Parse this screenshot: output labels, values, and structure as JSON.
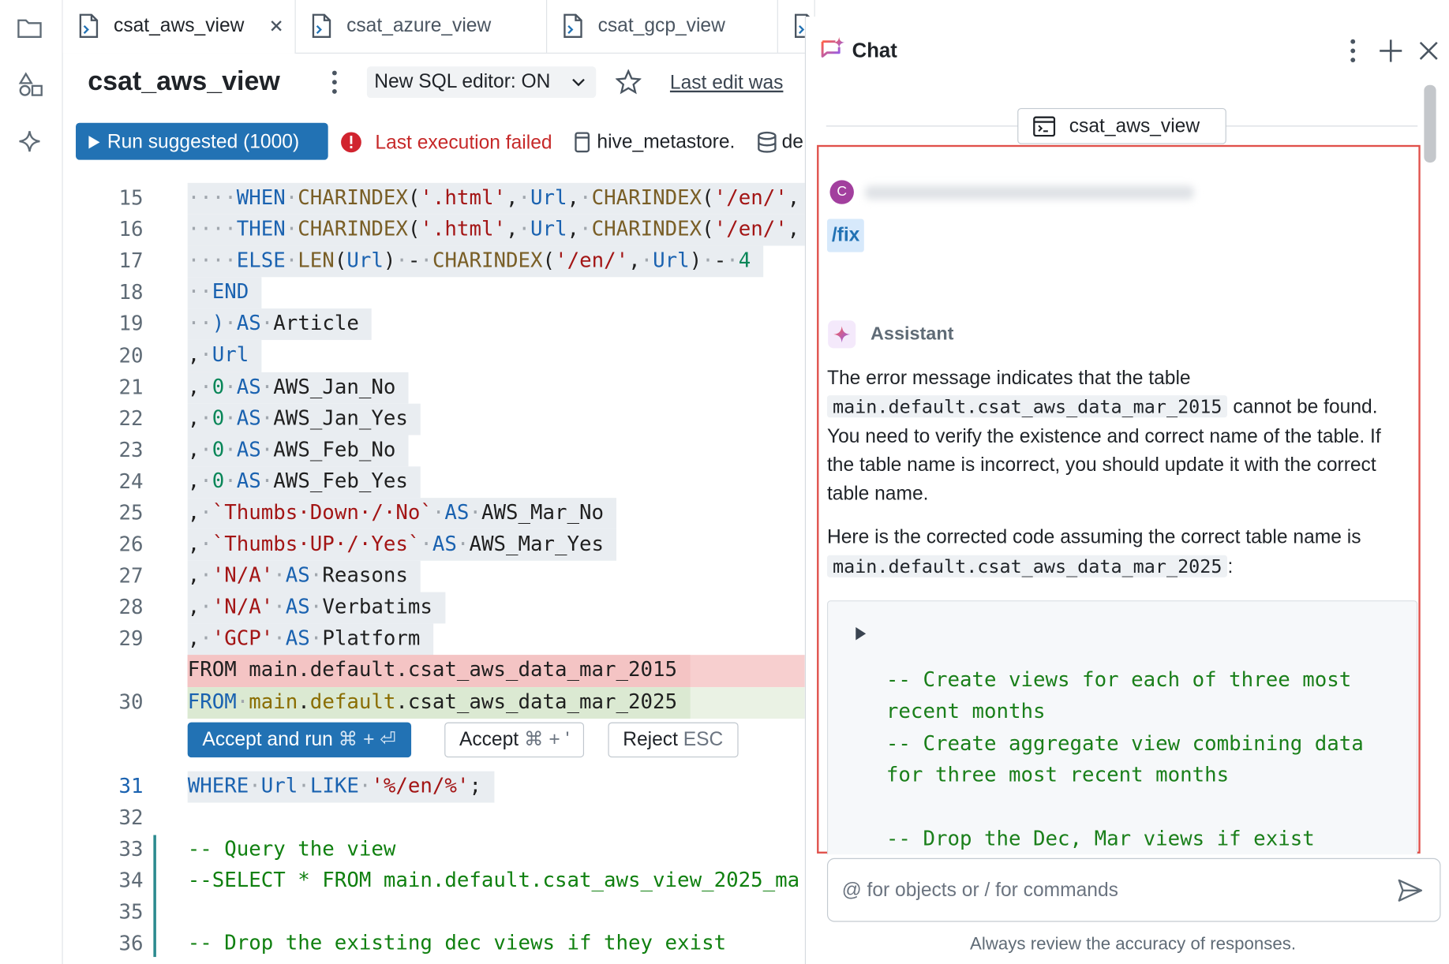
{
  "tabs": [
    {
      "label": "csat_aws_view"
    },
    {
      "label": "csat_azure_view"
    },
    {
      "label": "csat_gcp_view"
    }
  ],
  "toolbar": {
    "title": "csat_aws_view",
    "editor_toggle": "New SQL editor: ON",
    "last_edit": "Last edit was",
    "run_button": "Run suggested (1000)",
    "error": "Last execution failed",
    "catalog": "hive_metastore",
    "separator": ".",
    "schema": "de"
  },
  "editor": {
    "lines": [
      {
        "number": "15",
        "bg": "#e9edf1",
        "tokens": [
          [
            "····",
            "#a0a6ad"
          ],
          [
            "WHEN",
            "#1a62b0"
          ],
          [
            "·",
            "#a0a6ad"
          ],
          [
            "CHARINDEX",
            "#795e26"
          ],
          [
            "(",
            "#1f1f1f"
          ],
          [
            "'.html'",
            "#a31515"
          ],
          [
            ",",
            "#1f1f1f"
          ],
          [
            "·",
            "#a0a6ad"
          ],
          [
            "Url",
            "#1a62b0"
          ],
          [
            ",",
            "#1f1f1f"
          ],
          [
            "·",
            "#a0a6ad"
          ],
          [
            "CHARINDEX",
            "#795e26"
          ],
          [
            "(",
            "#1f1f1f"
          ],
          [
            "'/en/'",
            "#a31515"
          ],
          [
            ",",
            "#1f1f1f"
          ]
        ]
      },
      {
        "number": "16",
        "bg": "#e9edf1",
        "tokens": [
          [
            "····",
            "#a0a6ad"
          ],
          [
            "THEN",
            "#1a62b0"
          ],
          [
            "·",
            "#a0a6ad"
          ],
          [
            "CHARINDEX",
            "#795e26"
          ],
          [
            "(",
            "#1f1f1f"
          ],
          [
            "'.html'",
            "#a31515"
          ],
          [
            ",",
            "#1f1f1f"
          ],
          [
            "·",
            "#a0a6ad"
          ],
          [
            "Url",
            "#1a62b0"
          ],
          [
            ",",
            "#1f1f1f"
          ],
          [
            "·",
            "#a0a6ad"
          ],
          [
            "CHARINDEX",
            "#795e26"
          ],
          [
            "(",
            "#1f1f1f"
          ],
          [
            "'/en/'",
            "#a31515"
          ],
          [
            ",",
            "#1f1f1f"
          ]
        ]
      },
      {
        "number": "17",
        "bg": "#e9edf1",
        "tokens": [
          [
            "····",
            "#a0a6ad"
          ],
          [
            "ELSE",
            "#1a62b0"
          ],
          [
            "·",
            "#a0a6ad"
          ],
          [
            "LEN",
            "#795e26"
          ],
          [
            "(",
            "#1f1f1f"
          ],
          [
            "Url",
            "#1a62b0"
          ],
          [
            ")",
            "#1f1f1f"
          ],
          [
            "·",
            "#a0a6ad"
          ],
          [
            "-",
            "#1f1f1f"
          ],
          [
            "·",
            "#a0a6ad"
          ],
          [
            "CHARINDEX",
            "#795e26"
          ],
          [
            "(",
            "#1f1f1f"
          ],
          [
            "'/en/'",
            "#a31515"
          ],
          [
            ",",
            "#1f1f1f"
          ],
          [
            "·",
            "#a0a6ad"
          ],
          [
            "Url",
            "#1a62b0"
          ],
          [
            ")",
            "#1f1f1f"
          ],
          [
            "·",
            "#a0a6ad"
          ],
          [
            "-",
            "#1f1f1f"
          ],
          [
            "·",
            "#a0a6ad"
          ],
          [
            "4",
            "#098658"
          ]
        ]
      },
      {
        "number": "18",
        "bg": "#e9edf1",
        "tokens": [
          [
            "··",
            "#a0a6ad"
          ],
          [
            "END",
            "#1a62b0"
          ]
        ]
      },
      {
        "number": "19",
        "bg": "#e9edf1",
        "tokens": [
          [
            "··",
            "#a0a6ad"
          ],
          [
            ")",
            "#1a62b0"
          ],
          [
            "·",
            "#a0a6ad"
          ],
          [
            "AS",
            "#1a62b0"
          ],
          [
            "·",
            "#a0a6ad"
          ],
          [
            "Article",
            "#1f1f1f"
          ]
        ]
      },
      {
        "number": "20",
        "bg": "#e9edf1",
        "tokens": [
          [
            ",",
            "#1f1f1f"
          ],
          [
            "·",
            "#a0a6ad"
          ],
          [
            "Url",
            "#1a62b0"
          ]
        ]
      },
      {
        "number": "21",
        "bg": "#e9edf1",
        "tokens": [
          [
            ",",
            "#1f1f1f"
          ],
          [
            "·",
            "#a0a6ad"
          ],
          [
            "0",
            "#098658"
          ],
          [
            "·",
            "#a0a6ad"
          ],
          [
            "AS",
            "#1a62b0"
          ],
          [
            "·",
            "#a0a6ad"
          ],
          [
            "AWS_Jan_No",
            "#1f1f1f"
          ]
        ]
      },
      {
        "number": "22",
        "bg": "#e9edf1",
        "tokens": [
          [
            ",",
            "#1f1f1f"
          ],
          [
            "·",
            "#a0a6ad"
          ],
          [
            "0",
            "#098658"
          ],
          [
            "·",
            "#a0a6ad"
          ],
          [
            "AS",
            "#1a62b0"
          ],
          [
            "·",
            "#a0a6ad"
          ],
          [
            "AWS_Jan_Yes",
            "#1f1f1f"
          ]
        ]
      },
      {
        "number": "23",
        "bg": "#e9edf1",
        "tokens": [
          [
            ",",
            "#1f1f1f"
          ],
          [
            "·",
            "#a0a6ad"
          ],
          [
            "0",
            "#098658"
          ],
          [
            "·",
            "#a0a6ad"
          ],
          [
            "AS",
            "#1a62b0"
          ],
          [
            "·",
            "#a0a6ad"
          ],
          [
            "AWS_Feb_No",
            "#1f1f1f"
          ]
        ]
      },
      {
        "number": "24",
        "bg": "#e9edf1",
        "tokens": [
          [
            ",",
            "#1f1f1f"
          ],
          [
            "·",
            "#a0a6ad"
          ],
          [
            "0",
            "#098658"
          ],
          [
            "·",
            "#a0a6ad"
          ],
          [
            "AS",
            "#1a62b0"
          ],
          [
            "·",
            "#a0a6ad"
          ],
          [
            "AWS_Feb_Yes",
            "#1f1f1f"
          ]
        ]
      },
      {
        "number": "25",
        "bg": "#e9edf1",
        "tokens": [
          [
            ",",
            "#1f1f1f"
          ],
          [
            "·",
            "#a0a6ad"
          ],
          [
            "`Thumbs·Down·/·No`",
            "#a31515"
          ],
          [
            "·",
            "#a0a6ad"
          ],
          [
            "AS",
            "#1a62b0"
          ],
          [
            "·",
            "#a0a6ad"
          ],
          [
            "AWS_Mar_No",
            "#1f1f1f"
          ]
        ]
      },
      {
        "number": "26",
        "bg": "#e9edf1",
        "tokens": [
          [
            ",",
            "#1f1f1f"
          ],
          [
            "·",
            "#a0a6ad"
          ],
          [
            "`Thumbs·UP·/·Yes`",
            "#a31515"
          ],
          [
            "·",
            "#a0a6ad"
          ],
          [
            "AS",
            "#1a62b0"
          ],
          [
            "·",
            "#a0a6ad"
          ],
          [
            "AWS_Mar_Yes",
            "#1f1f1f"
          ]
        ]
      },
      {
        "number": "27",
        "bg": "#e9edf1",
        "tokens": [
          [
            ",",
            "#1f1f1f"
          ],
          [
            "·",
            "#a0a6ad"
          ],
          [
            "'N/A'",
            "#a31515"
          ],
          [
            "·",
            "#a0a6ad"
          ],
          [
            "AS",
            "#1a62b0"
          ],
          [
            "·",
            "#a0a6ad"
          ],
          [
            "Reasons",
            "#1f1f1f"
          ]
        ]
      },
      {
        "number": "28",
        "bg": "#e9edf1",
        "tokens": [
          [
            ",",
            "#1f1f1f"
          ],
          [
            "·",
            "#a0a6ad"
          ],
          [
            "'N/A'",
            "#a31515"
          ],
          [
            "·",
            "#a0a6ad"
          ],
          [
            "AS",
            "#1a62b0"
          ],
          [
            "·",
            "#a0a6ad"
          ],
          [
            "Verbatims",
            "#1f1f1f"
          ]
        ]
      },
      {
        "number": "29",
        "bg": "#e9edf1",
        "tokens": [
          [
            ",",
            "#1f1f1f"
          ],
          [
            "·",
            "#a0a6ad"
          ],
          [
            "'GCP'",
            "#a31515"
          ],
          [
            "·",
            "#a0a6ad"
          ],
          [
            "AS",
            "#1a62b0"
          ],
          [
            "·",
            "#a0a6ad"
          ],
          [
            "Platform",
            "#1f1f1f"
          ]
        ]
      },
      {
        "number": null,
        "bg": "#f4c4c4",
        "row_bg": "#f7cfcf",
        "tokens": [
          [
            "FROM main.default.csat_aws_data_mar_2015",
            "#1f1f1f"
          ]
        ]
      },
      {
        "number": "30",
        "bg": "#dbe9d2",
        "row_bg": "#eaf2e4",
        "tokens": [
          [
            "FROM",
            "#1a62b0"
          ],
          [
            "·",
            "#a0a6ad"
          ],
          [
            "main",
            "#8a6d00"
          ],
          [
            ".",
            "#1f1f1f"
          ],
          [
            "default",
            "#8a6d00"
          ],
          [
            ".csat_aws_data_mar_2025",
            "#1f1f1f"
          ]
        ]
      },
      {
        "number": "31",
        "bg": "#e9edf1",
        "tokens": [
          [
            "WHERE",
            "#1a62b0"
          ],
          [
            "·",
            "#a0a6ad"
          ],
          [
            "Url",
            "#1a62b0"
          ],
          [
            "·",
            "#a0a6ad"
          ],
          [
            "LIKE",
            "#1a62b0"
          ],
          [
            "·",
            "#a0a6ad"
          ],
          [
            "'%/en/%'",
            "#a31515"
          ],
          [
            ";",
            "#1f1f1f"
          ]
        ]
      },
      {
        "number": "32",
        "tokens": []
      },
      {
        "number": "33",
        "tokens": [
          [
            "-- Query the view",
            "#108010"
          ]
        ]
      },
      {
        "number": "34",
        "tokens": [
          [
            "--SELECT * FROM main.default.csat_aws_view_2025_ma",
            "#108010"
          ]
        ]
      },
      {
        "number": "35",
        "tokens": []
      },
      {
        "number": "36",
        "tokens": [
          [
            "-- Drop the existing dec views if they exist",
            "#108010"
          ]
        ]
      }
    ],
    "actions": [
      {
        "label": "Accept and run",
        "shortcut": "⌘ + ⏎"
      },
      {
        "label": "Accept",
        "shortcut": "⌘ + '"
      },
      {
        "label": "Reject",
        "shortcut": "ESC"
      }
    ]
  },
  "chat": {
    "title": "Chat",
    "context": "csat_aws_view",
    "user": {
      "avatar": "C",
      "command": "/fix"
    },
    "assistant": {
      "name": "Assistant",
      "paragraphs": [
        [
          {
            "text": "The error message indicates that the table "
          },
          {
            "text": "main.default.csat_aws_data_mar_2015",
            "code": true
          },
          {
            "text": " cannot be found. You need to verify the existence and correct name of the table. If the table name is incorrect, you should update it with the correct table name."
          }
        ],
        [
          {
            "text": "Here is the corrected code assuming the correct table name is "
          },
          {
            "text": "main.default.csat_aws_data_mar_2025",
            "code": true
          },
          {
            "text": ":"
          }
        ]
      ],
      "code_comments": [
        "-- Create views for each of three most recent months",
        "-- Create aggregate view combining data for three most recent months",
        "-- Drop the Dec, Mar views if exist"
      ]
    },
    "input_placeholder": "@ for objects or / for commands",
    "footer": "Always review the accuracy of responses."
  }
}
